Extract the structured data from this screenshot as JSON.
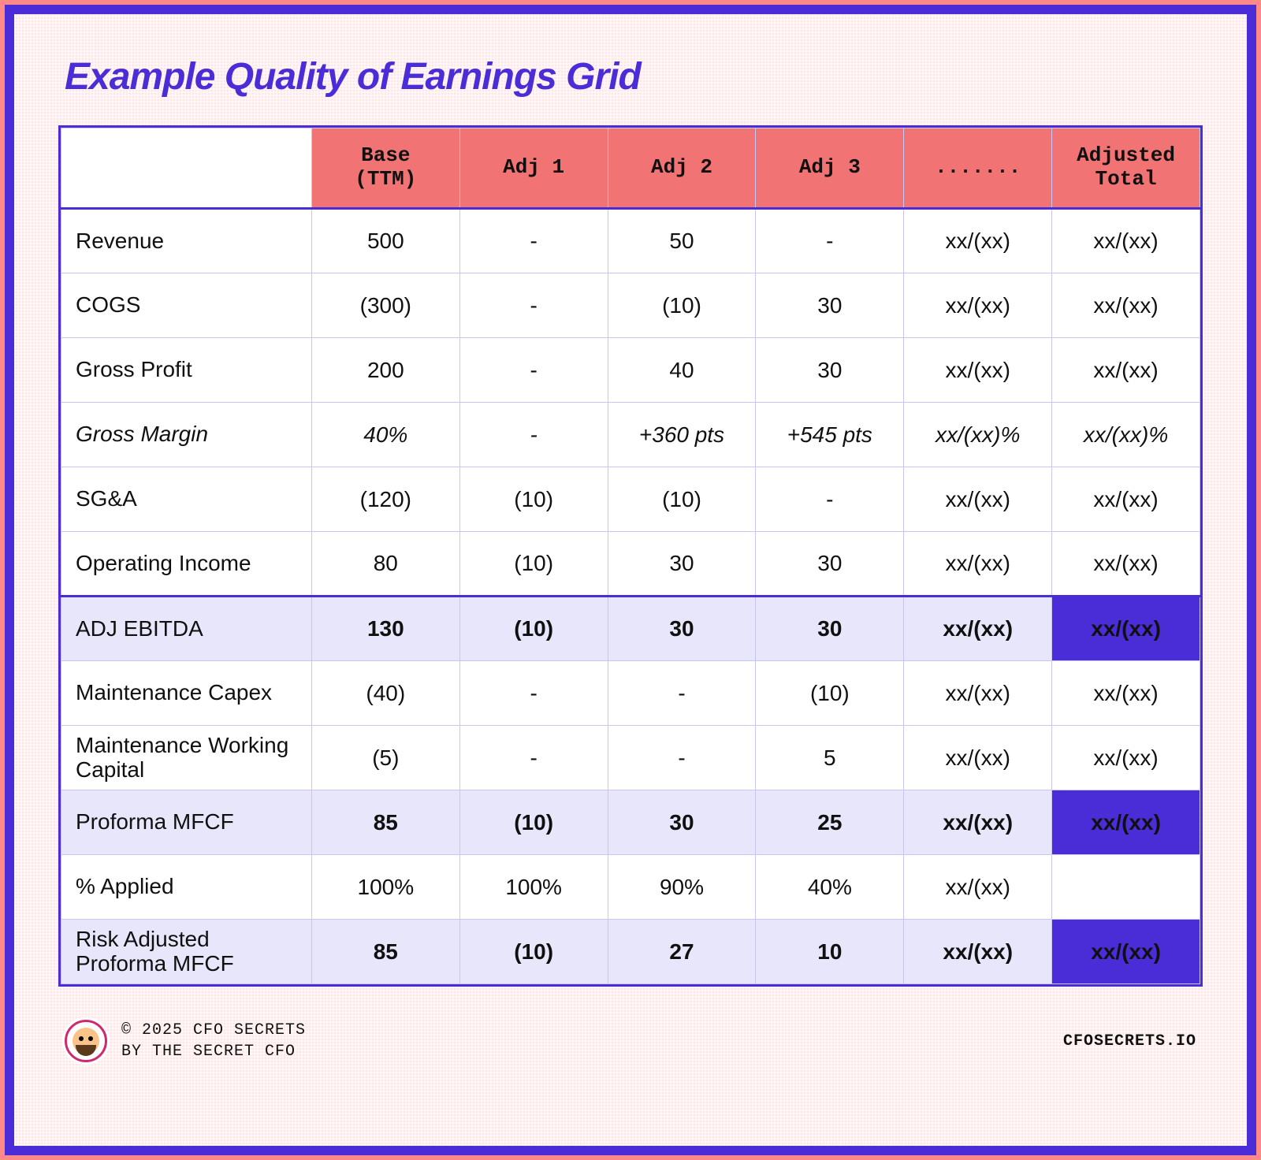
{
  "title": "Example Quality of Earnings Grid",
  "table": {
    "columns": [
      "",
      "Base\n(TTM)",
      "Adj 1",
      "Adj 2",
      "Adj 3",
      ".......",
      "Adjusted\nTotal"
    ],
    "header_bg": "#f17373",
    "header_font": "monospace",
    "border_color": "#4a2dd6",
    "cell_border_color": "#c8c6f4",
    "lilac_bg": "#e8e6fa",
    "accent_bg": "#4a2dd6",
    "accent_fg": "#ffffff",
    "col_widths_pct": [
      22,
      13,
      13,
      13,
      13,
      13,
      13
    ],
    "rows": [
      {
        "label": "Revenue",
        "vals": [
          "500",
          "-",
          "50",
          "-",
          "xx/(xx)",
          "xx/(xx)"
        ],
        "style": "",
        "accent_last": false
      },
      {
        "label": "COGS",
        "vals": [
          "(300)",
          "-",
          "(10)",
          "30",
          "xx/(xx)",
          "xx/(xx)"
        ],
        "style": "",
        "accent_last": false
      },
      {
        "label": "Gross Profit",
        "vals": [
          "200",
          "-",
          "40",
          "30",
          "xx/(xx)",
          "xx/(xx)"
        ],
        "style": "",
        "accent_last": false
      },
      {
        "label": "Gross Margin",
        "vals": [
          "40%",
          "-",
          "+360 pts",
          "+545 pts",
          "xx/(xx)%",
          "xx/(xx)%"
        ],
        "style": "italic",
        "accent_last": false
      },
      {
        "label": "SG&A",
        "vals": [
          "(120)",
          "(10)",
          "(10)",
          "-",
          "xx/(xx)",
          "xx/(xx)"
        ],
        "style": "",
        "accent_last": false
      },
      {
        "label": "Operating Income",
        "vals": [
          "80",
          "(10)",
          "30",
          "30",
          "xx/(xx)",
          "xx/(xx)"
        ],
        "style": "sep-bottom",
        "accent_last": false
      },
      {
        "label": "ADJ EBITDA",
        "vals": [
          "130",
          "(10)",
          "30",
          "30",
          "xx/(xx)",
          "xx/(xx)"
        ],
        "style": "bold lilac sep-top",
        "accent_last": true
      },
      {
        "label": "Maintenance Capex",
        "vals": [
          "(40)",
          "-",
          "-",
          "(10)",
          "xx/(xx)",
          "xx/(xx)"
        ],
        "style": "",
        "accent_last": false
      },
      {
        "label": "Maintenance Working Capital",
        "vals": [
          "(5)",
          "-",
          "-",
          "5",
          "xx/(xx)",
          "xx/(xx)"
        ],
        "style": "",
        "accent_last": false
      },
      {
        "label": "Proforma MFCF",
        "vals": [
          "85",
          "(10)",
          "30",
          "25",
          "xx/(xx)",
          "xx/(xx)"
        ],
        "style": "bold lilac",
        "accent_last": true
      },
      {
        "label": "% Applied",
        "vals": [
          "100%",
          "100%",
          "90%",
          "40%",
          "xx/(xx)",
          ""
        ],
        "style": "",
        "accent_last": false
      },
      {
        "label": "Risk Adjusted Proforma MFCF",
        "vals": [
          "85",
          "(10)",
          "27",
          "10",
          "xx/(xx)",
          "xx/(xx)"
        ],
        "style": "bold lilac",
        "accent_last": true
      }
    ]
  },
  "footer": {
    "line1": "© 2025 CFO SECRETS",
    "line2": "BY THE SECRET CFO",
    "site": "CFOSECRETS.IO"
  },
  "palette": {
    "frame_border": "#4a2dd6",
    "frame_bg": "#ffe6e6",
    "title_color": "#4a2dd6"
  }
}
